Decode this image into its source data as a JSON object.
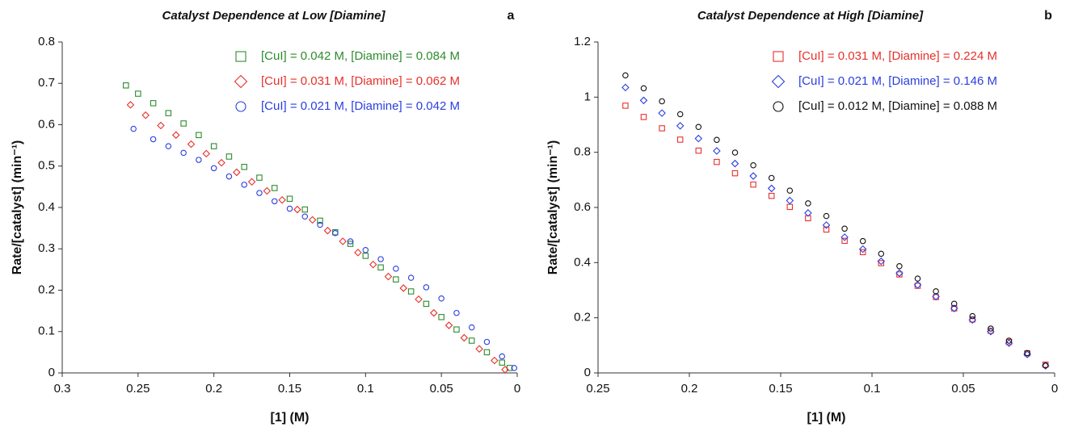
{
  "chart_data": [
    {
      "type": "scatter",
      "title": "Catalyst Dependence at Low [Diamine]",
      "panel_label": "a",
      "xlabel": "[1] (M)",
      "ylabel": "Rate/[catalyst] (min⁻¹)",
      "xlim": [
        0.3,
        0
      ],
      "ylim": [
        0,
        0.8
      ],
      "xticks": [
        0.3,
        0.25,
        0.2,
        0.15,
        0.1,
        0.05,
        0
      ],
      "yticks": [
        0,
        0.1,
        0.2,
        0.3,
        0.4,
        0.5,
        0.6,
        0.7,
        0.8
      ],
      "legend": "upper right",
      "series": [
        {
          "name": "[CuI] = 0.042 M, [Diamine] = 0.084 M",
          "color": "#2e8b2e",
          "marker": "square",
          "x": [
            0.258,
            0.25,
            0.24,
            0.23,
            0.22,
            0.21,
            0.2,
            0.19,
            0.18,
            0.17,
            0.16,
            0.15,
            0.14,
            0.13,
            0.12,
            0.11,
            0.1,
            0.09,
            0.08,
            0.07,
            0.06,
            0.05,
            0.04,
            0.03,
            0.02,
            0.01,
            0.005
          ],
          "values": [
            0.695,
            0.675,
            0.652,
            0.628,
            0.603,
            0.575,
            0.548,
            0.523,
            0.498,
            0.472,
            0.447,
            0.421,
            0.395,
            0.368,
            0.34,
            0.312,
            0.283,
            0.255,
            0.226,
            0.197,
            0.167,
            0.135,
            0.105,
            0.078,
            0.05,
            0.025,
            0.012
          ]
        },
        {
          "name": "[CuI] = 0.031 M, [Diamine] = 0.062 M",
          "color": "#e8302a",
          "marker": "diamond",
          "x": [
            0.255,
            0.245,
            0.235,
            0.225,
            0.215,
            0.205,
            0.195,
            0.185,
            0.175,
            0.165,
            0.155,
            0.145,
            0.135,
            0.125,
            0.115,
            0.105,
            0.095,
            0.085,
            0.075,
            0.065,
            0.055,
            0.045,
            0.035,
            0.025,
            0.015,
            0.008
          ],
          "values": [
            0.648,
            0.623,
            0.598,
            0.575,
            0.553,
            0.53,
            0.508,
            0.485,
            0.462,
            0.44,
            0.418,
            0.395,
            0.37,
            0.344,
            0.318,
            0.291,
            0.262,
            0.233,
            0.205,
            0.178,
            0.145,
            0.115,
            0.085,
            0.058,
            0.03,
            0.008
          ]
        },
        {
          "name": "[CuI] = 0.021 M, [Diamine] = 0.042 M",
          "color": "#2b3fe0",
          "marker": "circle",
          "x": [
            0.253,
            0.24,
            0.23,
            0.22,
            0.21,
            0.2,
            0.19,
            0.18,
            0.17,
            0.16,
            0.15,
            0.14,
            0.13,
            0.12,
            0.11,
            0.1,
            0.09,
            0.08,
            0.07,
            0.06,
            0.05,
            0.04,
            0.03,
            0.02,
            0.01,
            0.002
          ],
          "values": [
            0.59,
            0.565,
            0.548,
            0.532,
            0.515,
            0.495,
            0.475,
            0.455,
            0.435,
            0.415,
            0.397,
            0.378,
            0.358,
            0.338,
            0.318,
            0.297,
            0.275,
            0.252,
            0.23,
            0.207,
            0.18,
            0.145,
            0.11,
            0.075,
            0.04,
            0.012
          ]
        }
      ]
    },
    {
      "type": "scatter",
      "title": "Catalyst Dependence at High [Diamine]",
      "panel_label": "b",
      "xlabel": "[1] (M)",
      "ylabel": "Rate/[catalyst] (min⁻¹)",
      "xlim": [
        0.25,
        0
      ],
      "ylim": [
        0,
        1.2
      ],
      "xticks": [
        0.25,
        0.2,
        0.15,
        0.1,
        0.05,
        0
      ],
      "yticks": [
        0,
        0.2,
        0.4,
        0.6,
        0.8,
        1,
        1.2
      ],
      "legend": "upper right",
      "series": [
        {
          "name": "[CuI] = 0.031 M, [Diamine] = 0.224 M",
          "color": "#e8302a",
          "marker": "square",
          "x": [
            0.235,
            0.225,
            0.215,
            0.205,
            0.195,
            0.185,
            0.175,
            0.165,
            0.155,
            0.145,
            0.135,
            0.125,
            0.115,
            0.105,
            0.095,
            0.085,
            0.075,
            0.065,
            0.055,
            0.045,
            0.035,
            0.025,
            0.015,
            0.005
          ],
          "values": [
            0.969,
            0.928,
            0.887,
            0.846,
            0.806,
            0.765,
            0.724,
            0.683,
            0.642,
            0.602,
            0.561,
            0.52,
            0.479,
            0.438,
            0.398,
            0.357,
            0.316,
            0.275,
            0.234,
            0.194,
            0.153,
            0.112,
            0.071,
            0.03
          ]
        },
        {
          "name": "[CuI] = 0.021 M, [Diamine] = 0.146 M",
          "color": "#2b3fe0",
          "marker": "diamond",
          "x": [
            0.235,
            0.225,
            0.215,
            0.205,
            0.195,
            0.185,
            0.175,
            0.165,
            0.155,
            0.145,
            0.135,
            0.125,
            0.115,
            0.105,
            0.095,
            0.085,
            0.075,
            0.065,
            0.055,
            0.045,
            0.035,
            0.025,
            0.015,
            0.005
          ],
          "values": [
            1.035,
            0.988,
            0.942,
            0.896,
            0.85,
            0.805,
            0.759,
            0.714,
            0.669,
            0.625,
            0.58,
            0.536,
            0.492,
            0.449,
            0.405,
            0.362,
            0.319,
            0.277,
            0.234,
            0.192,
            0.15,
            0.108,
            0.067,
            0.026
          ]
        },
        {
          "name": "[CuI] = 0.012 M, [Diamine] = 0.088 M",
          "color": "#111111",
          "marker": "circle",
          "x": [
            0.235,
            0.225,
            0.215,
            0.205,
            0.195,
            0.185,
            0.175,
            0.165,
            0.155,
            0.145,
            0.135,
            0.125,
            0.115,
            0.105,
            0.095,
            0.085,
            0.075,
            0.065,
            0.055,
            0.045,
            0.035,
            0.025,
            0.015,
            0.005
          ],
          "values": [
            1.079,
            1.032,
            0.985,
            0.938,
            0.892,
            0.845,
            0.799,
            0.753,
            0.707,
            0.661,
            0.615,
            0.569,
            0.523,
            0.478,
            0.432,
            0.387,
            0.342,
            0.296,
            0.251,
            0.206,
            0.161,
            0.117,
            0.072,
            0.027
          ]
        }
      ]
    }
  ]
}
